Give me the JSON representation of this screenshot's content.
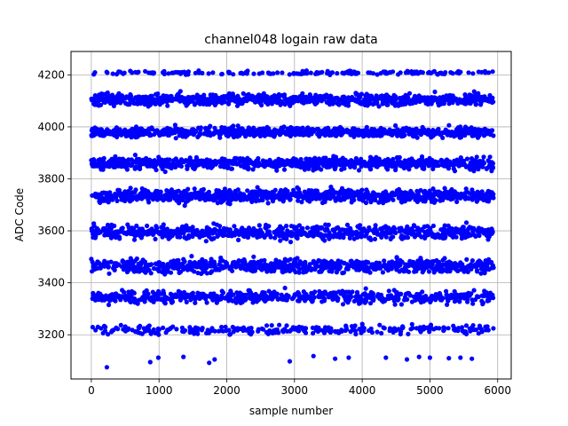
{
  "chart_data": {
    "type": "scatter",
    "title": "channel048 logain raw data",
    "xlabel": "sample number",
    "ylabel": "ADC Code",
    "xlim": [
      -300,
      6200
    ],
    "ylim": [
      3030,
      4290
    ],
    "xticks": [
      0,
      1000,
      2000,
      3000,
      4000,
      5000,
      6000
    ],
    "yticks": [
      3200,
      3400,
      3600,
      3800,
      4000,
      4200
    ],
    "grid": true,
    "marker_color": "#0000ff",
    "sample_count": 5940,
    "bands": [
      {
        "center": 3220,
        "spread": 14,
        "density": 0.28
      },
      {
        "center": 3345,
        "spread": 20,
        "density": 0.7
      },
      {
        "center": 3465,
        "spread": 22,
        "density": 0.85
      },
      {
        "center": 3595,
        "spread": 22,
        "density": 0.85
      },
      {
        "center": 3735,
        "spread": 20,
        "density": 0.95
      },
      {
        "center": 3860,
        "spread": 18,
        "density": 1.0
      },
      {
        "center": 3980,
        "spread": 15,
        "density": 1.0
      },
      {
        "center": 4105,
        "spread": 18,
        "density": 1.0
      },
      {
        "center": 4208,
        "spread": 6,
        "density": 0.18
      }
    ],
    "outliers": [
      {
        "x": 230,
        "y": 3075
      },
      {
        "x": 870,
        "y": 3095
      },
      {
        "x": 990,
        "y": 3112
      },
      {
        "x": 1360,
        "y": 3115
      },
      {
        "x": 1740,
        "y": 3092
      },
      {
        "x": 1820,
        "y": 3105
      },
      {
        "x": 2930,
        "y": 3098
      },
      {
        "x": 3280,
        "y": 3118
      },
      {
        "x": 3600,
        "y": 3108
      },
      {
        "x": 3800,
        "y": 3112
      },
      {
        "x": 4350,
        "y": 3112
      },
      {
        "x": 4660,
        "y": 3105
      },
      {
        "x": 4840,
        "y": 3115
      },
      {
        "x": 5000,
        "y": 3112
      },
      {
        "x": 5280,
        "y": 3110
      },
      {
        "x": 5450,
        "y": 3112
      },
      {
        "x": 5620,
        "y": 3108
      }
    ]
  }
}
